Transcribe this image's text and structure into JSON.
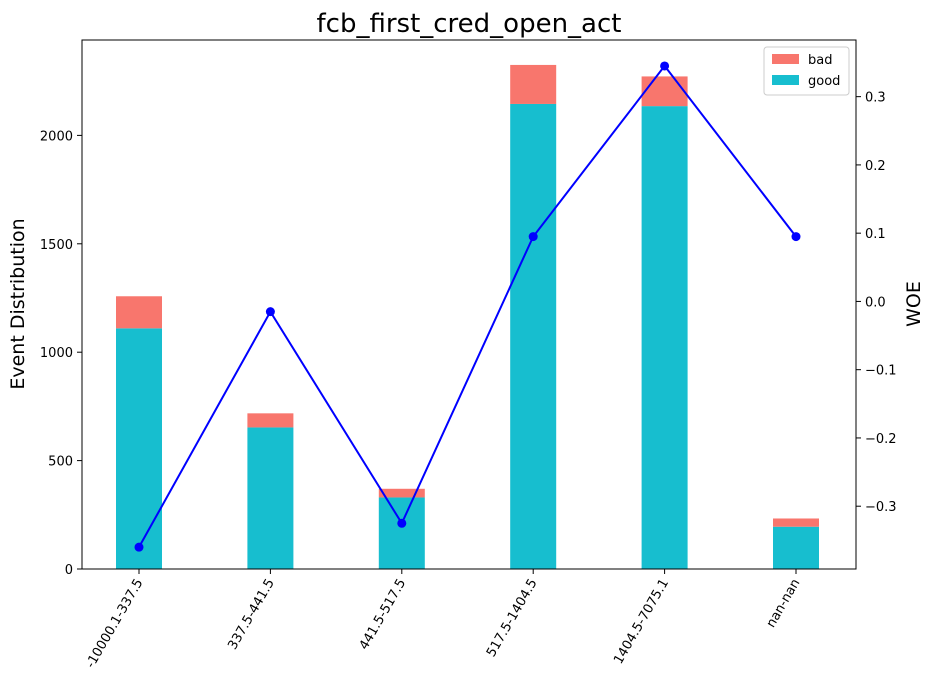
{
  "chart_data": {
    "type": "bar",
    "stacked": true,
    "title": "fcb_first_cred_open_act",
    "xlabel": "",
    "ylabel": "Event Distribution",
    "y2label": "WOE",
    "categories": [
      "-10000.1-337.5",
      "337.5-441.5",
      "441.5-517.5",
      "517.5-1404.5",
      "1404.5-7075.1",
      "nan-nan"
    ],
    "series": [
      {
        "name": "good",
        "color": "#17becf",
        "values": [
          1110,
          653,
          330,
          2145,
          2135,
          195
        ]
      },
      {
        "name": "bad",
        "color": "#f8766d",
        "values": [
          148,
          65,
          40,
          180,
          137,
          38
        ]
      }
    ],
    "woe": {
      "color": "#0000ff",
      "values": [
        -0.36,
        -0.015,
        -0.325,
        0.095,
        0.345,
        0.095
      ]
    },
    "ylim": [
      0,
      2440
    ],
    "y2lim": [
      -0.392,
      0.383
    ],
    "yticks": [
      0,
      500,
      1000,
      1500,
      2000
    ],
    "y2ticks": [
      -0.3,
      -0.2,
      -0.1,
      0.0,
      0.1,
      0.2,
      0.3
    ],
    "y2tick_labels": [
      "−0.3",
      "−0.2",
      "−0.1",
      "0.0",
      "0.1",
      "0.2",
      "0.3"
    ],
    "legend": {
      "position": "top-right",
      "entries": [
        {
          "label": "bad",
          "color": "#f8766d"
        },
        {
          "label": "good",
          "color": "#17becf"
        }
      ]
    },
    "grid": false
  }
}
